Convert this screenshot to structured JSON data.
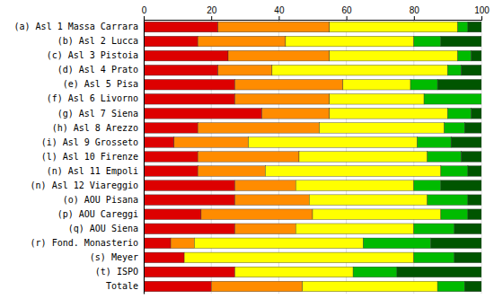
{
  "chart_data": {
    "type": "bar",
    "orientation": "horizontal",
    "stacked": true,
    "grid": true,
    "categories": [
      "(a) Asl 1 Massa Carrara",
      "(b) Asl 2 Lucca",
      "(c) Asl 3 Pistoia",
      "(d) Asl 4 Prato",
      "(e) Asl 5 Pisa",
      "(f) Asl 6 Livorno",
      "(g) Asl 7 Siena",
      "(h) Asl 8 Arezzo",
      "(i) Asl 9 Grosseto",
      "(l) Asl 10 Firenze",
      "(n) Asl 11 Empoli",
      "(n) Asl 12 Viareggio",
      "(o) AOU Pisana",
      "(p) AOU Careggi",
      "(q) AOU Siena",
      "(r) Fond. Monasterio",
      "(s) Meyer",
      "(t) ISPO",
      "Totale"
    ],
    "series": [
      {
        "color": "#dd0000",
        "values": [
          22,
          16,
          25,
          22,
          27,
          27,
          35,
          16,
          9,
          16,
          16,
          27,
          27,
          17,
          27,
          8,
          12,
          27,
          20
        ]
      },
      {
        "color": "#ff8c00",
        "values": [
          33,
          26,
          30,
          16,
          32,
          28,
          20,
          36,
          22,
          30,
          20,
          18,
          22,
          33,
          18,
          7,
          0,
          0,
          27
        ]
      },
      {
        "color": "#ffff00",
        "values": [
          38,
          38,
          38,
          52,
          20,
          28,
          35,
          37,
          50,
          38,
          52,
          35,
          35,
          38,
          35,
          50,
          68,
          35,
          40
        ]
      },
      {
        "color": "#00bb00",
        "values": [
          3,
          8,
          4,
          4,
          8,
          17,
          7,
          6,
          10,
          10,
          8,
          8,
          12,
          8,
          12,
          20,
          12,
          13,
          8
        ]
      },
      {
        "color": "#005500",
        "values": [
          4,
          12,
          3,
          6,
          13,
          0,
          3,
          5,
          9,
          6,
          4,
          12,
          4,
          4,
          8,
          15,
          8,
          25,
          5
        ]
      }
    ],
    "xlim": [
      0,
      100
    ],
    "xticks": [
      0,
      20,
      40,
      60,
      80,
      100
    ]
  }
}
